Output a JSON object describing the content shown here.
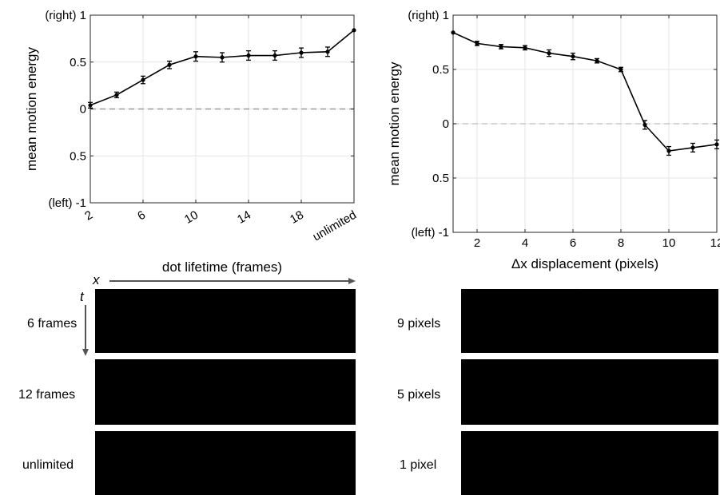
{
  "chart_data": [
    {
      "type": "line",
      "xlabel": "dot lifetime (frames)",
      "ylabel": "mean motion energy",
      "ylim": [
        -1,
        1
      ],
      "y_tick_labels": [
        "(left) -1",
        "0.5",
        "0",
        "0.5",
        "(right) 1"
      ],
      "y_tick_values": [
        -1,
        -0.5,
        0,
        0.5,
        1
      ],
      "x_tick_labels": [
        "2",
        "6",
        "10",
        "14",
        "18",
        "unlimited"
      ],
      "x_tick_values": [
        2,
        6,
        10,
        14,
        18,
        22
      ],
      "x_range": [
        2,
        22
      ],
      "x": [
        2,
        4,
        6,
        8,
        10,
        12,
        14,
        16,
        18,
        20,
        22
      ],
      "values": [
        0.04,
        0.15,
        0.31,
        0.47,
        0.56,
        0.55,
        0.57,
        0.57,
        0.6,
        0.61,
        0.84
      ],
      "errors": [
        0.03,
        0.03,
        0.04,
        0.04,
        0.05,
        0.05,
        0.05,
        0.05,
        0.05,
        0.05,
        0.0
      ],
      "reference_line": 0,
      "grid": true
    },
    {
      "type": "line",
      "xlabel": "Δx displacement (pixels)",
      "ylabel": "mean motion energy",
      "ylim": [
        -1,
        1
      ],
      "y_tick_labels": [
        "(left) -1",
        "0.5",
        "0",
        "0.5",
        "(right) 1"
      ],
      "y_tick_values": [
        -1,
        -0.5,
        0,
        0.5,
        1
      ],
      "x_tick_labels": [
        "2",
        "4",
        "6",
        "8",
        "10",
        "12"
      ],
      "x_tick_values": [
        2,
        4,
        6,
        8,
        10,
        12
      ],
      "x_range": [
        1,
        12
      ],
      "x": [
        1,
        2,
        3,
        4,
        5,
        6,
        7,
        8,
        9,
        10,
        11,
        12
      ],
      "values": [
        0.84,
        0.74,
        0.71,
        0.7,
        0.65,
        0.62,
        0.58,
        0.5,
        -0.01,
        -0.25,
        -0.22,
        -0.19
      ],
      "errors": [
        0.0,
        0.02,
        0.02,
        0.02,
        0.03,
        0.03,
        0.02,
        0.02,
        0.04,
        0.04,
        0.04,
        0.04
      ],
      "reference_line": 0,
      "grid": true
    }
  ],
  "stimuli": {
    "x_axis_label": "x",
    "t_axis_label": "t",
    "left_rows": [
      "6 frames",
      "12 frames",
      "unlimited"
    ],
    "right_rows": [
      "9 pixels",
      "5 pixels",
      "1 pixel"
    ]
  }
}
